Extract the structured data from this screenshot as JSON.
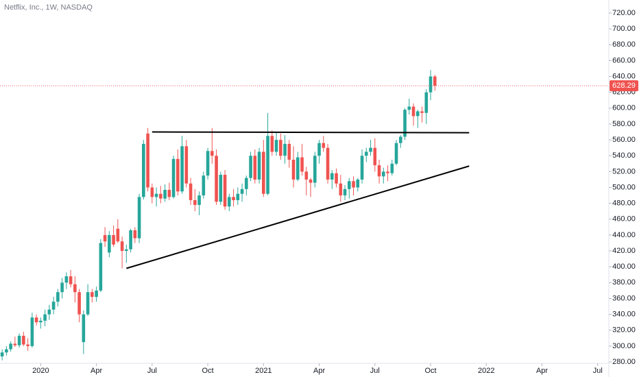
{
  "chart_data": {
    "type": "candlestick",
    "title": "Netflix, Inc., 1W, NASDAQ",
    "up_color": "#26a69a",
    "down_color": "#ef5350",
    "open": [
      287,
      292,
      296,
      303,
      301,
      313,
      302,
      300,
      336,
      330,
      332,
      340,
      346,
      356,
      368,
      380,
      388,
      378,
      368,
      305,
      340,
      368,
      362,
      370,
      440,
      418,
      440,
      448,
      432,
      420,
      422,
      446,
      436,
      488,
      568,
      500,
      488,
      492,
      486,
      497,
      488,
      536,
      495,
      552,
      505,
      484,
      478,
      490,
      515,
      546,
      540,
      482,
      516,
      476,
      488,
      484,
      492,
      498,
      512,
      540,
      510,
      545,
      492,
      565,
      545,
      560,
      540,
      555,
      535,
      510,
      538,
      520,
      510,
      506,
      540,
      556,
      550,
      510,
      518,
      505,
      490,
      498,
      508,
      500,
      510,
      540,
      545,
      550,
      528,
      514,
      520,
      518,
      530,
      556,
      564,
      598,
      602,
      590,
      596,
      594,
      620,
      640
    ],
    "high": [
      296,
      300,
      306,
      312,
      316,
      318,
      310,
      342,
      340,
      336,
      346,
      352,
      362,
      372,
      386,
      393,
      396,
      388,
      372,
      345,
      378,
      372,
      375,
      435,
      450,
      445,
      452,
      460,
      438,
      428,
      448,
      450,
      492,
      560,
      575,
      505,
      500,
      502,
      504,
      506,
      540,
      548,
      565,
      560,
      512,
      498,
      495,
      520,
      550,
      575,
      548,
      520,
      522,
      492,
      498,
      500,
      505,
      515,
      545,
      548,
      550,
      560,
      594,
      572,
      570,
      568,
      566,
      560,
      552,
      545,
      555,
      526,
      512,
      545,
      560,
      565,
      555,
      522,
      524,
      516,
      503,
      512,
      514,
      512,
      548,
      550,
      560,
      562,
      535,
      525,
      528,
      535,
      560,
      566,
      600,
      612,
      606,
      598,
      602,
      624,
      648,
      642
    ],
    "low": [
      282,
      288,
      293,
      299,
      298,
      300,
      294,
      298,
      326,
      322,
      325,
      333,
      340,
      350,
      360,
      372,
      374,
      355,
      330,
      290,
      338,
      355,
      356,
      368,
      425,
      412,
      425,
      430,
      398,
      405,
      418,
      430,
      430,
      485,
      495,
      480,
      476,
      480,
      482,
      484,
      486,
      490,
      492,
      500,
      478,
      470,
      465,
      486,
      510,
      530,
      478,
      478,
      472,
      470,
      476,
      478,
      482,
      490,
      508,
      505,
      505,
      488,
      490,
      540,
      540,
      535,
      530,
      525,
      500,
      508,
      515,
      490,
      488,
      500,
      530,
      545,
      505,
      498,
      500,
      482,
      484,
      486,
      490,
      495,
      505,
      532,
      540,
      520,
      505,
      505,
      508,
      515,
      528,
      550,
      560,
      592,
      578,
      575,
      582,
      580,
      610,
      622
    ],
    "close": [
      292,
      296,
      303,
      301,
      313,
      302,
      300,
      336,
      330,
      332,
      340,
      346,
      356,
      368,
      380,
      388,
      378,
      368,
      340,
      340,
      368,
      362,
      370,
      430,
      432,
      440,
      428,
      432,
      420,
      422,
      446,
      436,
      488,
      555,
      500,
      488,
      492,
      486,
      497,
      488,
      536,
      495,
      552,
      505,
      484,
      478,
      490,
      515,
      546,
      540,
      482,
      516,
      476,
      488,
      484,
      492,
      498,
      512,
      540,
      510,
      545,
      492,
      565,
      545,
      560,
      540,
      555,
      535,
      510,
      538,
      520,
      510,
      506,
      540,
      556,
      550,
      510,
      518,
      505,
      490,
      498,
      508,
      500,
      510,
      540,
      545,
      550,
      528,
      514,
      520,
      518,
      530,
      556,
      564,
      598,
      602,
      590,
      596,
      594,
      620,
      640,
      628.29
    ],
    "xlim": [
      -0.5,
      141.6
    ],
    "xticks": [
      {
        "value": 9,
        "label": "2020"
      },
      {
        "value": 22,
        "label": "Apr"
      },
      {
        "value": 35,
        "label": "Jul"
      },
      {
        "value": 48,
        "label": "Oct"
      },
      {
        "value": 61,
        "label": "2021"
      },
      {
        "value": 74,
        "label": "Apr"
      },
      {
        "value": 87,
        "label": "Jul"
      },
      {
        "value": 100,
        "label": "Oct"
      },
      {
        "value": 113,
        "label": "2022"
      },
      {
        "value": 126,
        "label": "Apr"
      },
      {
        "value": 139,
        "label": "Jul"
      }
    ],
    "ylim": [
      278.3,
      736.4
    ],
    "yticks": [
      {
        "value": 280,
        "label": "280.00"
      },
      {
        "value": 300,
        "label": "300.00"
      },
      {
        "value": 320,
        "label": "320.00"
      },
      {
        "value": 340,
        "label": "340.00"
      },
      {
        "value": 360,
        "label": "360.00"
      },
      {
        "value": 380,
        "label": "380.00"
      },
      {
        "value": 400,
        "label": "400.00"
      },
      {
        "value": 420,
        "label": "420.00"
      },
      {
        "value": 440,
        "label": "440.00"
      },
      {
        "value": 460,
        "label": "460.00"
      },
      {
        "value": 480,
        "label": "480.00"
      },
      {
        "value": 500,
        "label": "500.00"
      },
      {
        "value": 520,
        "label": "520.00"
      },
      {
        "value": 540,
        "label": "540.00"
      },
      {
        "value": 560,
        "label": "560.00"
      },
      {
        "value": 580,
        "label": "580.00"
      },
      {
        "value": 600,
        "label": "600.00"
      },
      {
        "value": 620,
        "label": "620.00"
      },
      {
        "value": 640,
        "label": "640.00"
      },
      {
        "value": 660,
        "label": "660.00"
      },
      {
        "value": 680,
        "label": "680.00"
      },
      {
        "value": 700,
        "label": "700.00"
      },
      {
        "value": 720,
        "label": "720.00"
      }
    ],
    "last_price": 628.29,
    "last_price_color": "#ef5350",
    "trendlines": [
      {
        "x": [
          35,
          109
        ],
        "y": [
          570,
          569
        ]
      },
      {
        "x": [
          29,
          109
        ],
        "y": [
          398,
          527
        ]
      }
    ]
  }
}
